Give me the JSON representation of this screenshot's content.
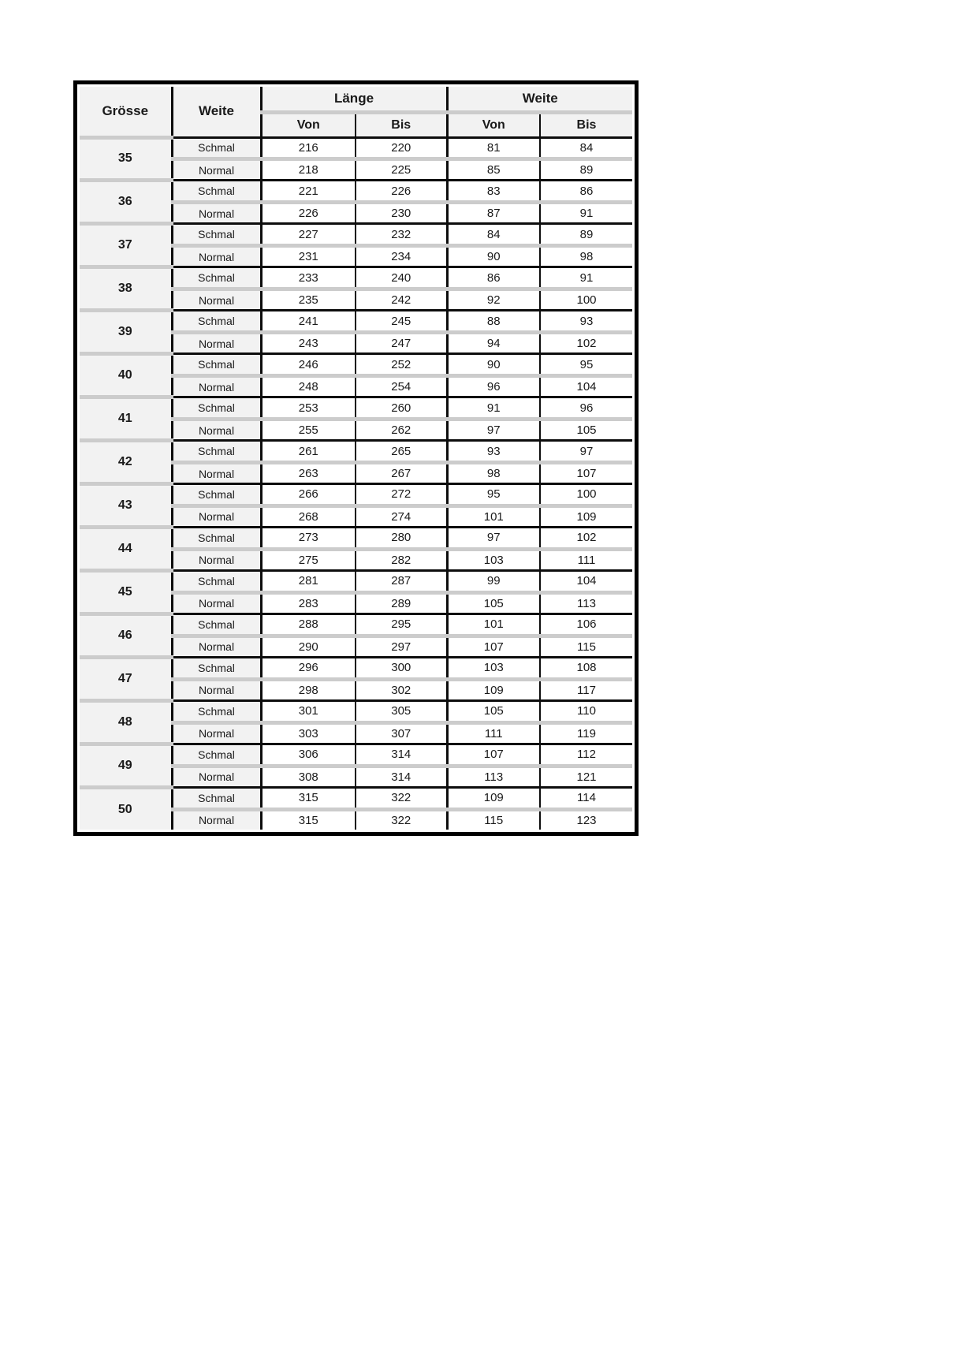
{
  "table": {
    "headers": {
      "groesse": "Grösse",
      "weite": "Weite",
      "laenge_group": "Länge",
      "weite_group": "Weite",
      "von": "Von",
      "bis": "Bis"
    },
    "colors": {
      "border": "#000000",
      "separator_band": "#cccccc",
      "label_cell_bg": "#f2f2f2",
      "value_cell_bg": "#ffffff"
    },
    "groups": [
      {
        "size": "35",
        "rows": [
          {
            "label": "Schmal",
            "laenge_von": "216",
            "laenge_bis": "220",
            "weite_von": "81",
            "weite_bis": "84"
          },
          {
            "label": "Normal",
            "laenge_von": "218",
            "laenge_bis": "225",
            "weite_von": "85",
            "weite_bis": "89"
          }
        ]
      },
      {
        "size": "36",
        "rows": [
          {
            "label": "Schmal",
            "laenge_von": "221",
            "laenge_bis": "226",
            "weite_von": "83",
            "weite_bis": "86"
          },
          {
            "label": "Normal",
            "laenge_von": "226",
            "laenge_bis": "230",
            "weite_von": "87",
            "weite_bis": "91"
          }
        ]
      },
      {
        "size": "37",
        "rows": [
          {
            "label": "Schmal",
            "laenge_von": "227",
            "laenge_bis": "232",
            "weite_von": "84",
            "weite_bis": "89"
          },
          {
            "label": "Normal",
            "laenge_von": "231",
            "laenge_bis": "234",
            "weite_von": "90",
            "weite_bis": "98"
          }
        ]
      },
      {
        "size": "38",
        "rows": [
          {
            "label": "Schmal",
            "laenge_von": "233",
            "laenge_bis": "240",
            "weite_von": "86",
            "weite_bis": "91"
          },
          {
            "label": "Normal",
            "laenge_von": "235",
            "laenge_bis": "242",
            "weite_von": "92",
            "weite_bis": "100"
          }
        ]
      },
      {
        "size": "39",
        "rows": [
          {
            "label": "Schmal",
            "laenge_von": "241",
            "laenge_bis": "245",
            "weite_von": "88",
            "weite_bis": "93"
          },
          {
            "label": "Normal",
            "laenge_von": "243",
            "laenge_bis": "247",
            "weite_von": "94",
            "weite_bis": "102"
          }
        ]
      },
      {
        "size": "40",
        "rows": [
          {
            "label": "Schmal",
            "laenge_von": "246",
            "laenge_bis": "252",
            "weite_von": "90",
            "weite_bis": "95"
          },
          {
            "label": "Normal",
            "laenge_von": "248",
            "laenge_bis": "254",
            "weite_von": "96",
            "weite_bis": "104"
          }
        ]
      },
      {
        "size": "41",
        "rows": [
          {
            "label": "Schmal",
            "laenge_von": "253",
            "laenge_bis": "260",
            "weite_von": "91",
            "weite_bis": "96"
          },
          {
            "label": "Normal",
            "laenge_von": "255",
            "laenge_bis": "262",
            "weite_von": "97",
            "weite_bis": "105"
          }
        ]
      },
      {
        "size": "42",
        "rows": [
          {
            "label": "Schmal",
            "laenge_von": "261",
            "laenge_bis": "265",
            "weite_von": "93",
            "weite_bis": "97"
          },
          {
            "label": "Normal",
            "laenge_von": "263",
            "laenge_bis": "267",
            "weite_von": "98",
            "weite_bis": "107"
          }
        ]
      },
      {
        "size": "43",
        "rows": [
          {
            "label": "Schmal",
            "laenge_von": "266",
            "laenge_bis": "272",
            "weite_von": "95",
            "weite_bis": "100"
          },
          {
            "label": "Normal",
            "laenge_von": "268",
            "laenge_bis": "274",
            "weite_von": "101",
            "weite_bis": "109"
          }
        ]
      },
      {
        "size": "44",
        "rows": [
          {
            "label": "Schmal",
            "laenge_von": "273",
            "laenge_bis": "280",
            "weite_von": "97",
            "weite_bis": "102"
          },
          {
            "label": "Normal",
            "laenge_von": "275",
            "laenge_bis": "282",
            "weite_von": "103",
            "weite_bis": "111"
          }
        ]
      },
      {
        "size": "45",
        "rows": [
          {
            "label": "Schmal",
            "laenge_von": "281",
            "laenge_bis": "287",
            "weite_von": "99",
            "weite_bis": "104"
          },
          {
            "label": "Normal",
            "laenge_von": "283",
            "laenge_bis": "289",
            "weite_von": "105",
            "weite_bis": "113"
          }
        ]
      },
      {
        "size": "46",
        "rows": [
          {
            "label": "Schmal",
            "laenge_von": "288",
            "laenge_bis": "295",
            "weite_von": "101",
            "weite_bis": "106"
          },
          {
            "label": "Normal",
            "laenge_von": "290",
            "laenge_bis": "297",
            "weite_von": "107",
            "weite_bis": "115"
          }
        ]
      },
      {
        "size": "47",
        "rows": [
          {
            "label": "Schmal",
            "laenge_von": "296",
            "laenge_bis": "300",
            "weite_von": "103",
            "weite_bis": "108"
          },
          {
            "label": "Normal",
            "laenge_von": "298",
            "laenge_bis": "302",
            "weite_von": "109",
            "weite_bis": "117"
          }
        ]
      },
      {
        "size": "48",
        "rows": [
          {
            "label": "Schmal",
            "laenge_von": "301",
            "laenge_bis": "305",
            "weite_von": "105",
            "weite_bis": "110"
          },
          {
            "label": "Normal",
            "laenge_von": "303",
            "laenge_bis": "307",
            "weite_von": "111",
            "weite_bis": "119"
          }
        ]
      },
      {
        "size": "49",
        "rows": [
          {
            "label": "Schmal",
            "laenge_von": "306",
            "laenge_bis": "314",
            "weite_von": "107",
            "weite_bis": "112"
          },
          {
            "label": "Normal",
            "laenge_von": "308",
            "laenge_bis": "314",
            "weite_von": "113",
            "weite_bis": "121"
          }
        ]
      },
      {
        "size": "50",
        "rows": [
          {
            "label": "Schmal",
            "laenge_von": "315",
            "laenge_bis": "322",
            "weite_von": "109",
            "weite_bis": "114"
          },
          {
            "label": "Normal",
            "laenge_von": "315",
            "laenge_bis": "322",
            "weite_von": "115",
            "weite_bis": "123"
          }
        ]
      }
    ]
  }
}
